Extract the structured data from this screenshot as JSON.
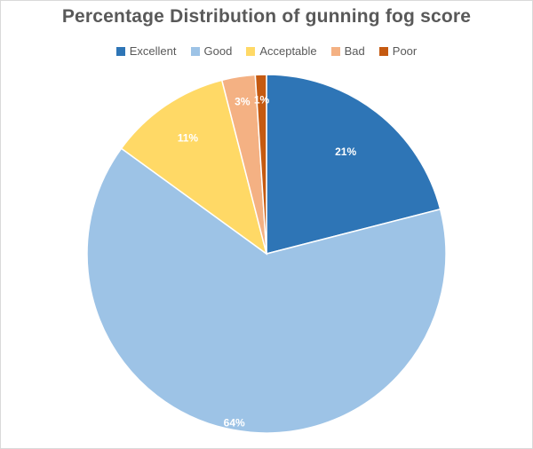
{
  "chart_data": {
    "type": "pie",
    "title": "Percentage Distribution of gunning fog score",
    "legend_position": "top",
    "categories": [
      "Excellent",
      "Good",
      "Acceptable",
      "Bad",
      "Poor"
    ],
    "values": [
      21,
      64,
      11,
      3,
      1
    ],
    "labels": [
      "21%",
      "64%",
      "11%",
      "3%",
      "1%"
    ],
    "colors": [
      "#2e75b6",
      "#9dc3e6",
      "#ffd966",
      "#f4b183",
      "#c55a11"
    ]
  }
}
